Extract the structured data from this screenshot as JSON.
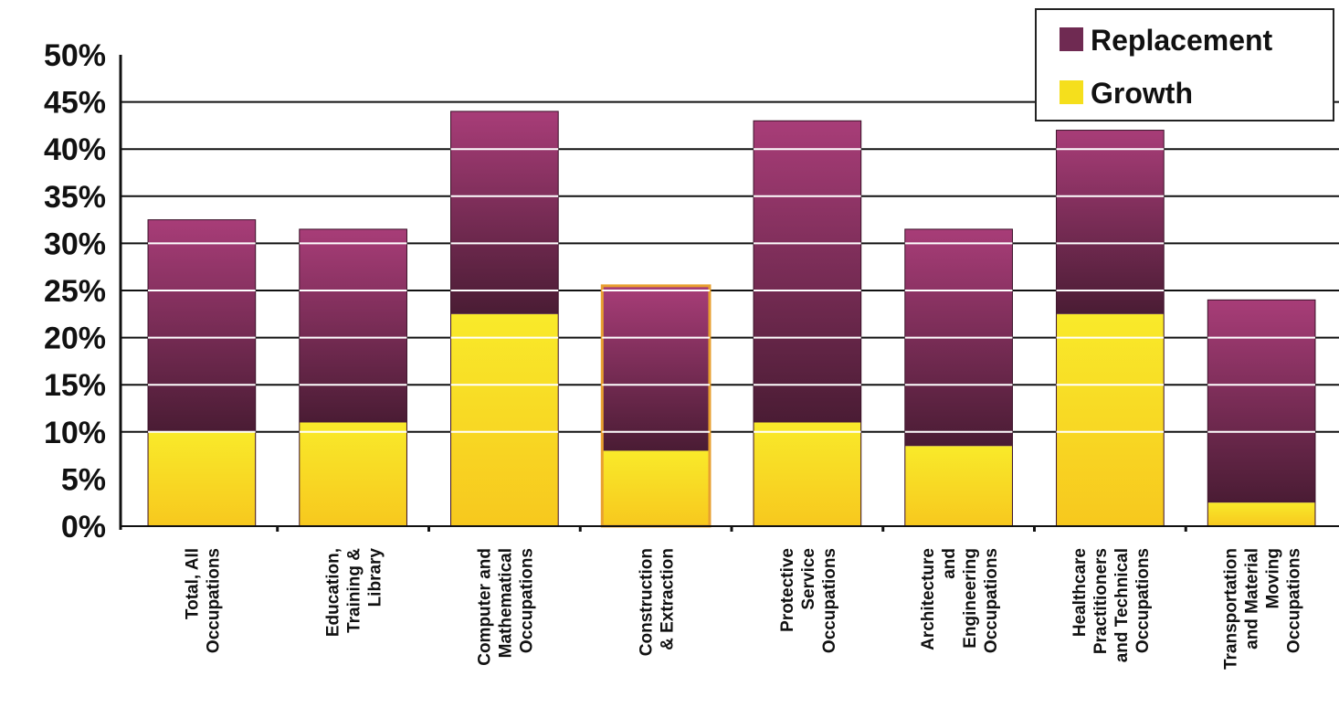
{
  "chart_data": {
    "type": "bar",
    "stacked": true,
    "title": "",
    "xlabel": "",
    "ylabel": "",
    "ylim": [
      0,
      50
    ],
    "y_ticks": [
      "0%",
      "5%",
      "10%",
      "15%",
      "20%",
      "25%",
      "30%",
      "35%",
      "40%",
      "45%",
      "50%"
    ],
    "grid": true,
    "legend_position": "top-right",
    "categories": [
      [
        "Total, All",
        "Occupations"
      ],
      [
        "Education,",
        "Training &",
        "Library"
      ],
      [
        "Computer and",
        "Mathematical",
        "Occupations"
      ],
      [
        "Construction",
        "& Extraction"
      ],
      [
        "Protective",
        "Service",
        "Occupations"
      ],
      [
        "Architecture",
        "and",
        "Engineering",
        "Occupations"
      ],
      [
        "Healthcare",
        "Practitioners",
        "and Technical",
        "Occupations"
      ],
      [
        "Transportation",
        "and Material",
        "Moving",
        "Occupations"
      ]
    ],
    "series": [
      {
        "name": "Growth",
        "values": [
          10,
          11,
          22.5,
          8,
          11,
          8.5,
          22.5,
          2.5
        ],
        "color": "#f5df1c"
      },
      {
        "name": "Replacement",
        "values": [
          22.5,
          20.5,
          21.5,
          17.5,
          32,
          23,
          19.5,
          21.5
        ],
        "color": "#7a2a57"
      }
    ]
  }
}
